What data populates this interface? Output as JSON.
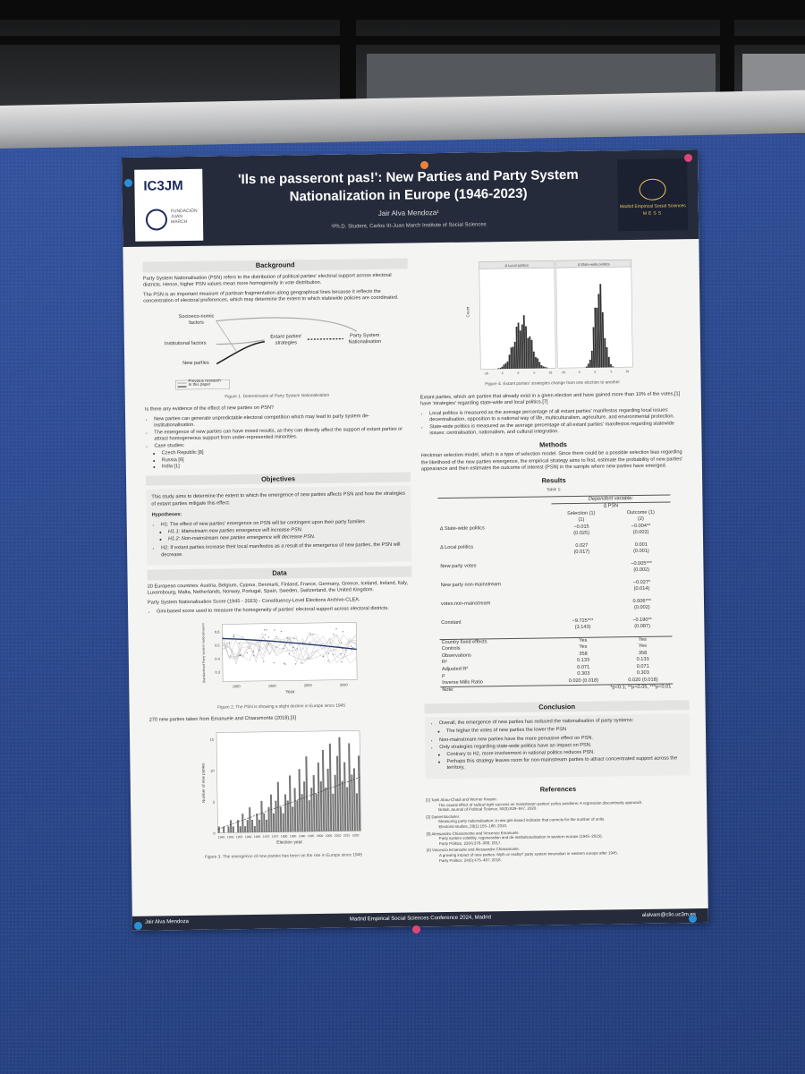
{
  "poster": {
    "logo_left": "IC3JM",
    "foundation": "FUNDACIÓN JUAN MARCH",
    "logo_right_line1": "Madrid Empirical Social Sciences",
    "logo_right_line2": "MESS",
    "title_line1": "'Ils ne passeront pas!': New Parties and Party System",
    "title_line2": "Nationalization in Europe (1946-2023)",
    "author": "Jair Alva Mendoza¹",
    "affiliation": "¹Ph.D. Student, Carlos III-Juan March Institute of Social Sciences"
  },
  "background": {
    "heading": "Background",
    "p1": "Party System Nationalisation (PSN) refers to the distribution of political parties' electoral support across electoral districts. Hence, higher PSN values mean more homogeneity in vote distribution.",
    "p2": "The PSN is an important measure of partisan fragmentation along geographical lines because it reflects the concentration of electoral preferences, which may determine the extent to which statewide policies are coordinated.",
    "diagram": {
      "socio": "Socioeco-nomic factors",
      "inst": "Institutional factors",
      "newp": "New parties",
      "strat": "Extant parties' strategies",
      "psn": "Party System Nationalisation",
      "legend1": "Previous research",
      "legend2": "In this paper"
    },
    "fig1_caption": "Figure 1. Determinants of Party System Nationalisation",
    "question": "Is there any evidence of the effect of new parties on PSN?",
    "b1": "New parties can generate unpredictable electoral competition which may lead to party system de-institutionalisation.",
    "b2": "The emergence of new parties can have mixed results, as they can directly affect the support of extant parties or attract homogeneous support from under-represented minorities.",
    "b3": "Case studies:",
    "c1": "Czech Republic [8]",
    "c2": "Russia [6]",
    "c3": "India [1]"
  },
  "objectives": {
    "heading": "Objectives",
    "text": "This study aims to determine the extent to which the emergence of new parties affects PSN and how the strategies of extant parties mitigate this effect.",
    "hyp_heading": "Hypotheses:",
    "h1": "H1: The effect of new parties' emergence on PSN will be contingent upon their party families",
    "h11": "H1.1: Mainstream new parties emergence will increase PSN.",
    "h12": "H1.2: Non-mainstream new parties emergence will decrease PSN.",
    "h2": "H2: If extant parties increase their local manifestos as a result of the emergence of new parties, the PSN will decrease."
  },
  "data": {
    "heading": "Data",
    "p1": "20 European countries: Austria, Belgium, Cyprus, Denmark, Finland, France, Germany, Greece, Iceland, Ireland, Italy, Luxembourg, Malta, Netherlands, Norway, Portugal, Spain, Sweden, Switzerland, the United Kingdom.",
    "p2": "Party System Nationalisation Score (1945 - 2023) - Constituency-Level Elections Archive-CLEA.",
    "b1": "Gini-based score used to measure the homogeneity of parties' electoral support across electoral districts.",
    "fig2_caption": "Figure 2. The PSN is showing a slight decline in Europe since 1945",
    "p3": "270 new parties taken from Emanuele and Chiaramonte (2018).[3]",
    "fig3_caption": "Figure 3. The emergence of new parties has been on the rise in Europe since 1945"
  },
  "right": {
    "fig4_caption": "Figure 4. Extant parties' strategies change from one election to another",
    "p1": "Extant parties, which are parties that already exist in a given election and have gained more than 10% of the votes,[1] have 'strategies' regarding state-wide and local politics.[7]",
    "b1": "Local politics is measured as the average percentage of all extant parties' manifestos regarding local issues: decentralisation, opposition to a national way of life, multiculturalism, agriculture, and environmental protection.",
    "b2": "State-wide politics is measured as the average percentage of all extant parties' manifestos regarding statewide issues: centralisation, nationalism, and cultural integration.",
    "methods_heading": "Methods",
    "methods": "Heckman selection model, which is a type of selection model. Since there could be a possible selection bias regarding the likelihood of the new parties emergence, the empirical strategy aims to first, estimate the probability of new parties' appearance and then estimates the outcome of interest (PSN) in the sample where new parties have emerged.",
    "results_heading": "Results",
    "table_title": "Table 1:",
    "conclusion_heading": "Conclusion",
    "k1": "Overall, the emergence of new parties has reduced the nationalisation of party systems:",
    "k1a": "The higher the votes of new parties the lower the PSN",
    "k2": "Non-mainstream new parties have the more pervasive effect on PSN.",
    "k3": "Only strategies regarding state-wide politics have an impact on PSN.",
    "k3a": "Contrary to H2, more involvement in national politics reduces PSN.",
    "k3b": "Perhaps this strategy leaves room for non-mainstream parties to attract concentrated support across the territory.",
    "references_heading": "References",
    "r1a": "[1]   Tarik Abou-Chadi and Werner Krause.",
    "r1b": "The causal effect of radical right success on mainstream parties' policy positions: A regression discontinuity approach.",
    "r1c": "British Journal of Political Science, 50(3):829–847, 2020.",
    "r2a": "[2]   Daniel Bochsler.",
    "r2b": "Measuring party nationalisation: A new gini-based indicator that corrects for the number of units.",
    "r2c": "Electoral studies, 29(1):155–168, 2010.",
    "r3a": "[3]   Alessandro Chiaramonte and Vincenzo Emanuele.",
    "r3b": "Party system volatility, regeneration and de-institutionalization in western europe (1945–2015).",
    "r3c": "Party Politics, 23(4):376–388, 2017.",
    "r4a": "[4]   Vincenzo Emanuele and Alessandro Chiaramonte.",
    "r4b": "A growing impact of new parties: Myth or reality? party system innovation in western europe after 1945.",
    "r4c": "Party Politics, 24(5):475–487, 2018."
  },
  "table": {
    "dep_header": "Dependent variable:",
    "psn_header": "Δ PSN",
    "col1": "Selection (1)",
    "col2": "Outcome (1)",
    "n1": "(1)",
    "n2": "(2)",
    "rows": [
      {
        "label": "Δ State-wide politics",
        "a": "−0.015",
        "as": "(0.025)",
        "b": "−0.004**",
        "bs": "(0.002)"
      },
      {
        "label": "Δ Local politics",
        "a": "0.027",
        "as": "(0.017)",
        "b": "0.001",
        "bs": "(0.001)"
      },
      {
        "label": "New party votes",
        "a": "",
        "as": "",
        "b": "−0.005***",
        "bs": "(0.002)"
      },
      {
        "label": "New party non-mainstream",
        "a": "",
        "as": "",
        "b": "−0.027*",
        "bs": "(0.014)"
      },
      {
        "label": "votes:non-mainstream",
        "a": "",
        "as": "",
        "b": "0.006***",
        "bs": "(0.002)"
      },
      {
        "label": "Constant",
        "a": "−9.725***",
        "as": "(3.143)",
        "b": "−0.190**",
        "bs": "(0.087)"
      }
    ],
    "stats": [
      {
        "label": "Country fixed effects",
        "a": "Yes",
        "b": "Yes"
      },
      {
        "label": "Controls",
        "a": "Yes",
        "b": "Yes"
      },
      {
        "label": "Observations",
        "a": "358",
        "b": "358"
      },
      {
        "label": "R²",
        "a": "0.133",
        "b": "0.133"
      },
      {
        "label": "Adjusted R²",
        "a": "0.071",
        "b": "0.071"
      },
      {
        "label": "ρ",
        "a": "0.303",
        "b": "0.303"
      },
      {
        "label": "Inverse Mills Ratio",
        "a": "0.020 (0.018)",
        "b": "0.020 (0.018)"
      }
    ],
    "note_label": "Note:",
    "note": "*p<0.1; **p<0.05; ***p<0.01"
  },
  "footer": {
    "left": "Jair Alva Mendoza",
    "center": "Madrid Empirical Social Sciences Conference 2024, Madrid",
    "right": "alalvam@clio.uc3m.es"
  },
  "figures": {
    "fig2_xlabel": "Year",
    "fig2_ylabel": "Standardised Party system nationalisation",
    "fig3_xlabel": "Election year",
    "fig3_ylabel": "Number of new parties",
    "fig4_panel1": "Δ Local politics",
    "fig4_panel2": "Δ State-wide politics",
    "fig4_ylabel": "Count",
    "fig3_xticks": [
      "1945",
      "1950",
      "1955",
      "1960",
      "1965",
      "1970",
      "1975",
      "1980",
      "1985",
      "1990",
      "1995",
      "2000",
      "2005",
      "2010",
      "2015",
      "2020"
    ],
    "fig3_yticks": [
      "0",
      "5",
      "10",
      "15"
    ],
    "fig2_xticks": [
      "1960",
      "1980",
      "2000",
      "2020"
    ],
    "fig2_yticks": [
      "0.6",
      "0.5",
      "0.4",
      "0.3"
    ],
    "fig4_xticks": [
      "-10",
      "-5",
      "0",
      "5",
      "10"
    ]
  },
  "colors": {
    "header": "#252b3b",
    "board": "#2e4c93",
    "accent": "#e8c35a"
  }
}
